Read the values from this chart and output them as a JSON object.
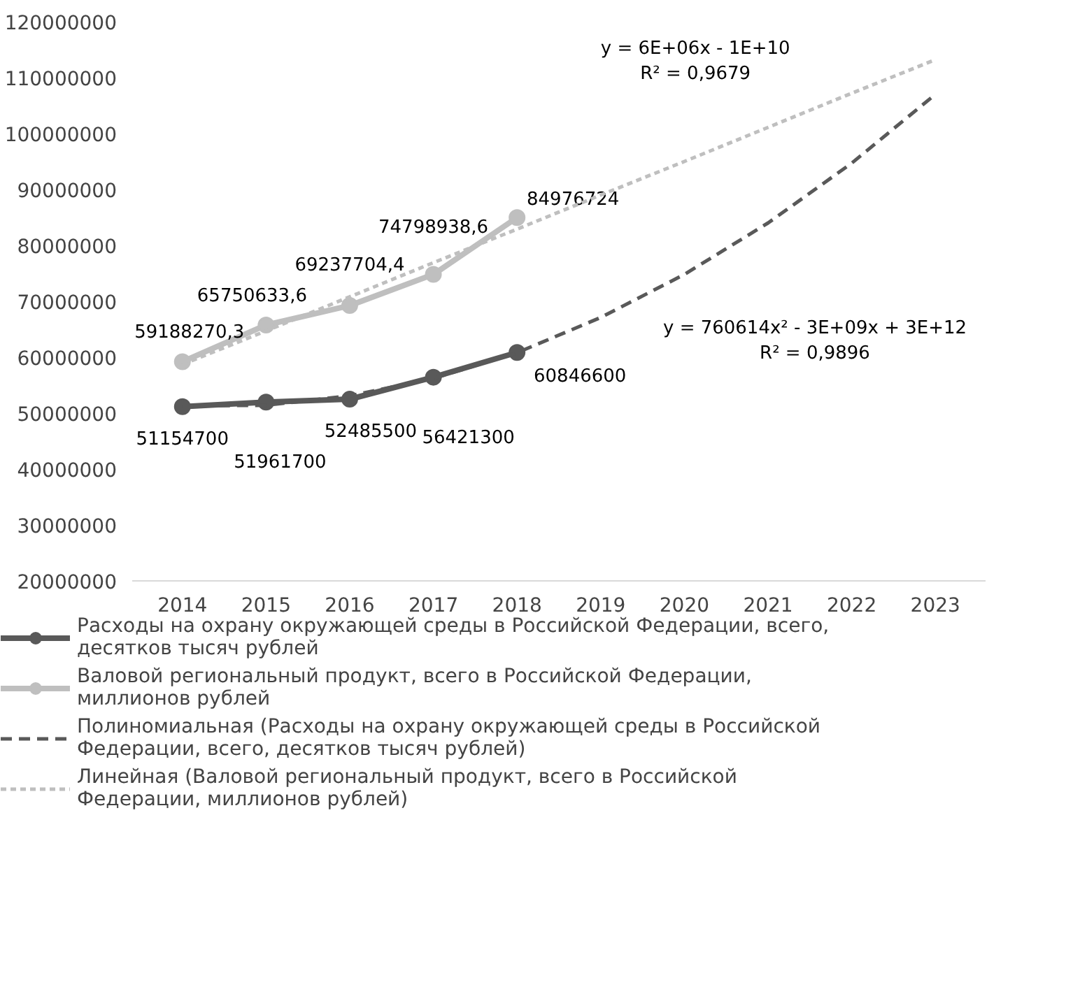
{
  "chart_data": {
    "type": "line",
    "categories": [
      "2014",
      "2015",
      "2016",
      "2017",
      "2018",
      "2019",
      "2020",
      "2021",
      "2022",
      "2023"
    ],
    "ylim": [
      20000000,
      120000000
    ],
    "yticks": [
      20000000,
      30000000,
      40000000,
      50000000,
      60000000,
      70000000,
      80000000,
      90000000,
      100000000,
      110000000,
      120000000
    ],
    "grid": false,
    "legend": "bottom",
    "series": [
      {
        "name": "Расходы на охрану окружающей среды в Российской Федерации, всего, десятков тысяч рублей",
        "color": "#595959",
        "marker": "circle",
        "line_style": "solid",
        "values": [
          51154700,
          51961700,
          52485500,
          56421300,
          60846600,
          null,
          null,
          null,
          null,
          null
        ],
        "value_labels": [
          "51154700",
          "51961700",
          "52485500",
          "56421300",
          "60846600",
          null,
          null,
          null,
          null,
          null
        ]
      },
      {
        "name": "Валовой региональный продукт, всего в Российской Федерации, миллионов рублей",
        "color": "#bfbfbf",
        "marker": "circle",
        "line_style": "solid",
        "values": [
          59188270.3,
          65750633.6,
          69237704.4,
          74798938.6,
          84976724,
          null,
          null,
          null,
          null,
          null
        ],
        "value_labels": [
          "59188270,3",
          "65750633,6",
          "69237704,4",
          "74798938,6",
          "84976724",
          null,
          null,
          null,
          null,
          null
        ]
      },
      {
        "name": "Полиномиальная (Расходы на охрану окружающей среды в Российской Федерации, всего, десятков тысяч рублей)",
        "color": "#595959",
        "marker": "none",
        "line_style": "dashed",
        "values": [
          51300000,
          51400000,
          53100000,
          56200000,
          60800000,
          67100000,
          74800000,
          84000000,
          94700000,
          107000000
        ]
      },
      {
        "name": "Линейная (Валовой региональный продукт, всего в Российской Федерации, миллионов рублей)",
        "color": "#bfbfbf",
        "marker": "none",
        "line_style": "dotted",
        "values": [
          58700000,
          64700000,
          70800000,
          76900000,
          82900000,
          89000000,
          95000000,
          101100000,
          107200000,
          113200000
        ]
      }
    ],
    "annotations": [
      "y = 6E+06x - 1E+10\nR² = 0,9679",
      "y = 760614x² - 3E+09x + 3E+12\nR² = 0,9896"
    ]
  }
}
